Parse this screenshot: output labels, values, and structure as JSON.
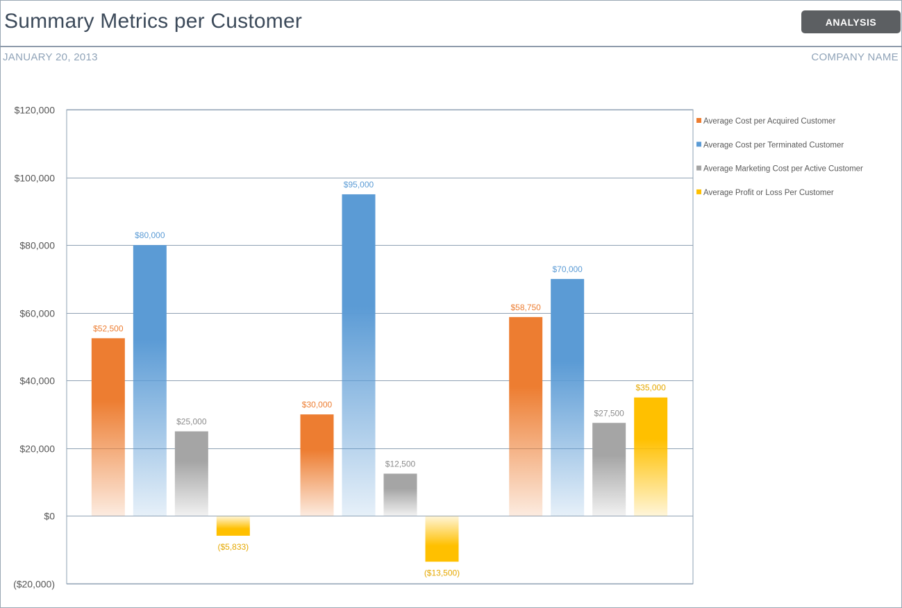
{
  "header": {
    "title": "Summary Metrics per Customer",
    "analysis_button": "ANALYSIS",
    "date": "JANUARY 20, 2013",
    "company": "COMPANY NAME"
  },
  "chart_data": {
    "type": "bar",
    "title": "",
    "xlabel": "",
    "ylabel": "",
    "categories": [
      "",
      "",
      ""
    ],
    "ylim": [
      -20000,
      120000
    ],
    "y_ticks": [
      120000,
      100000,
      80000,
      60000,
      40000,
      20000,
      0,
      -20000
    ],
    "y_tick_labels": [
      "$120,000",
      "$100,000",
      "$80,000",
      "$60,000",
      "$40,000",
      "$20,000",
      "$0",
      "($20,000)"
    ],
    "grid": true,
    "legend_position": "right",
    "series": [
      {
        "name": "Average Cost per Acquired Customer",
        "color": "#ed7d31",
        "values": [
          52500,
          30000,
          58750
        ],
        "labels": [
          "$52,500",
          "$30,000",
          "$58,750"
        ]
      },
      {
        "name": "Average Cost per Terminated Customer",
        "color": "#5b9bd5",
        "values": [
          80000,
          95000,
          70000
        ],
        "labels": [
          "$80,000",
          "$95,000",
          "$70,000"
        ]
      },
      {
        "name": "Average Marketing Cost per Active Customer",
        "color": "#a5a5a5",
        "values": [
          25000,
          12500,
          27500
        ],
        "labels": [
          "$25,000",
          "$12,500",
          "$27,500"
        ]
      },
      {
        "name": "Average Profit or Loss Per Customer",
        "color": "#ffc000",
        "values": [
          -5833,
          -13500,
          35000
        ],
        "labels": [
          "($5,833)",
          "($13,500)",
          "$35,000"
        ]
      }
    ]
  }
}
